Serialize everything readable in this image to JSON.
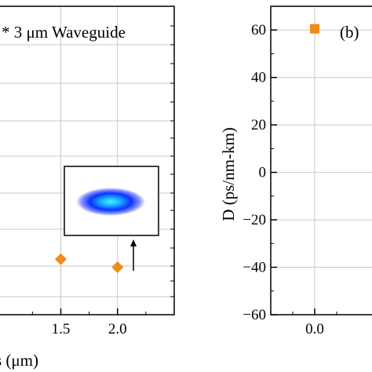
{
  "chart_data": [
    {
      "type": "scatter",
      "panel": "left",
      "title_annotation": "* 3 μm Waveguide",
      "xlabel": "s (μm)",
      "ylabel": "",
      "xlim": [
        0.95,
        2.5
      ],
      "x_ticks": [
        1.5,
        2.0
      ],
      "x_tick_labels": [
        "1.5",
        "2.0"
      ],
      "grid": true,
      "marker_color": "#f28a1c",
      "marker": "diamond",
      "series": [
        {
          "x": [
            1.5,
            2.0
          ],
          "y": [
            -36.6,
            -40.0
          ]
        }
      ],
      "inset": "mode-profile",
      "arrow": "from inset down to point at 2.0"
    },
    {
      "type": "scatter",
      "panel": "right",
      "panel_label": "(b)",
      "xlabel": "",
      "ylabel": "D (ps/nm-km)",
      "ylim": [
        -60,
        70
      ],
      "y_ticks": [
        -60,
        -40,
        -20,
        0,
        20,
        40,
        60
      ],
      "y_tick_labels": [
        "−60",
        "−40",
        "−20",
        "0",
        "20",
        "40",
        "60"
      ],
      "x_ticks": [
        0.0
      ],
      "x_tick_labels": [
        "0.0"
      ],
      "grid": true,
      "marker_color": "#f28a1c",
      "marker": "square",
      "series": [
        {
          "x": [
            0.0
          ],
          "y": [
            60.5
          ]
        }
      ]
    }
  ]
}
